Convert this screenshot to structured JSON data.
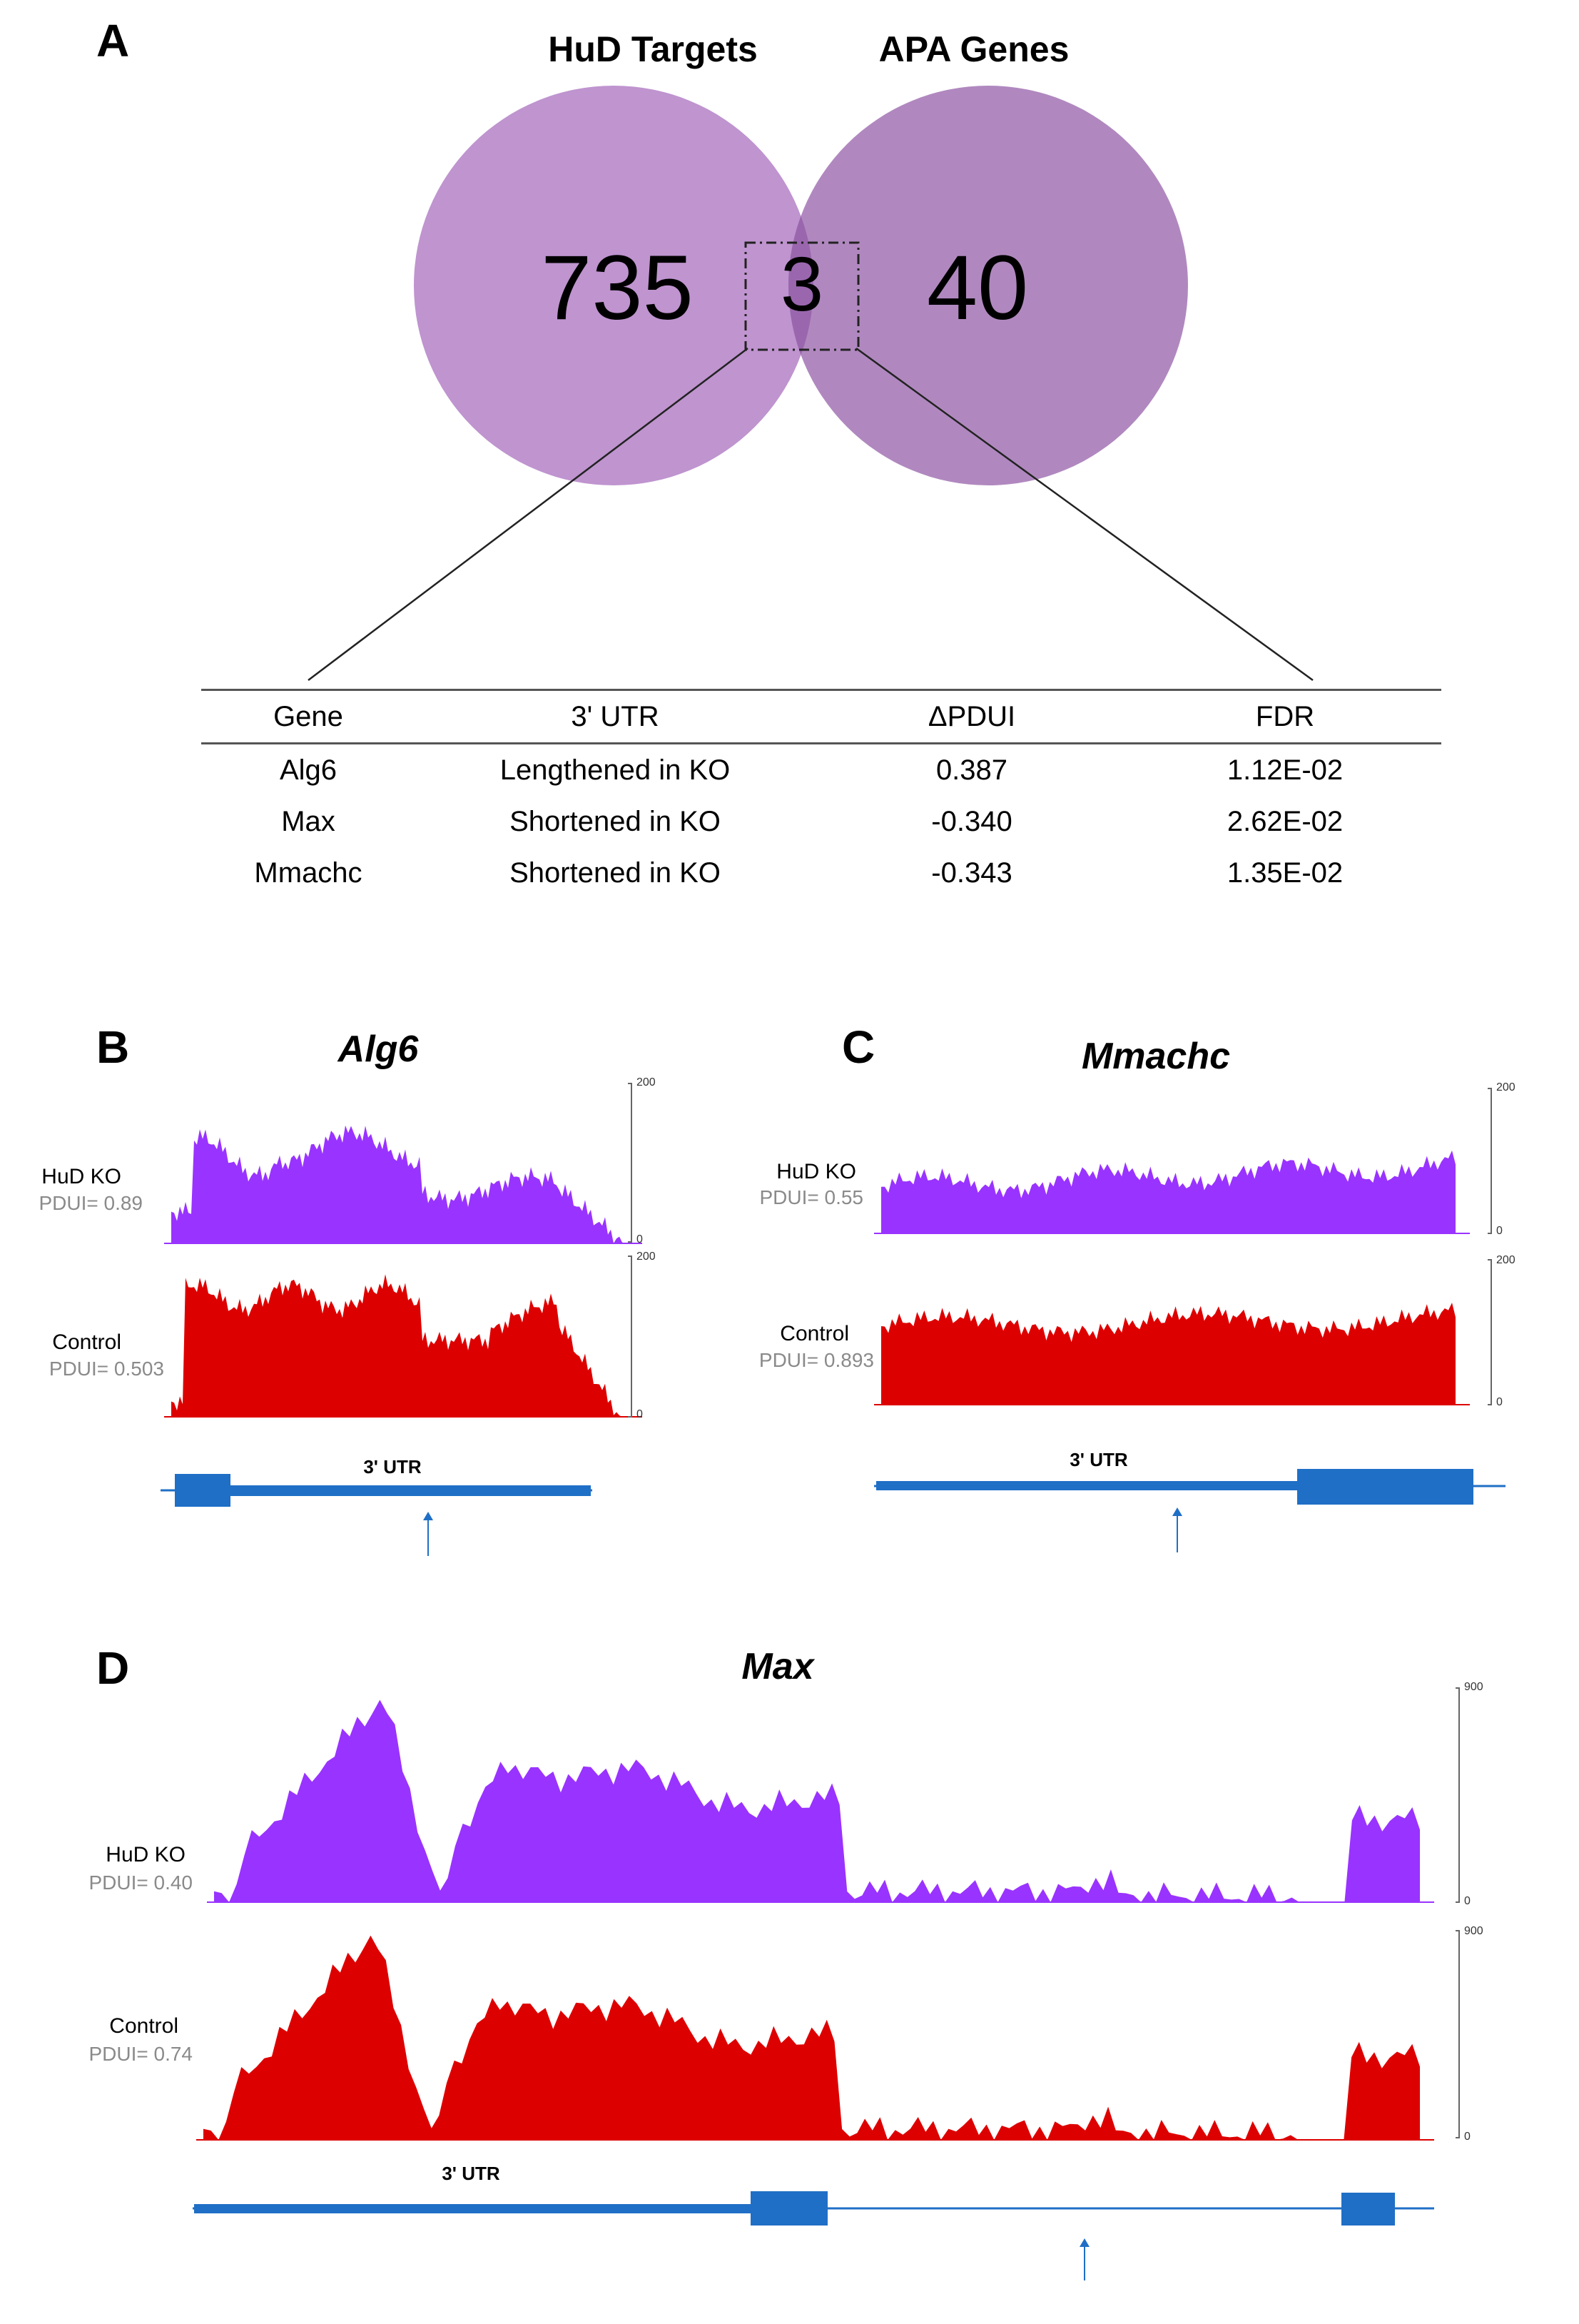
{
  "panel_a": {
    "letter": "A",
    "venn": {
      "left_label": "HuD Targets",
      "right_label": "APA Genes",
      "left_only": "735",
      "overlap": "3",
      "right_only": "40",
      "left_color": "#bf94cf",
      "right_color": "#b088bf",
      "overlap_color": "#9a67ae"
    },
    "table": {
      "headers": [
        "Gene",
        "3' UTR",
        "ΔPDUI",
        "FDR"
      ],
      "rows": [
        [
          "Alg6",
          "Lengthened in KO",
          "0.387",
          "1.12E-02"
        ],
        [
          "Max",
          "Shortened in KO",
          "-0.340",
          "2.62E-02"
        ],
        [
          "Mmachc",
          "Shortened in KO",
          "-0.343",
          "1.35E-02"
        ]
      ]
    }
  },
  "panel_b": {
    "letter": "B",
    "gene": "Alg6",
    "tracks": [
      {
        "name": "HuD KO",
        "pdui": "PDUI= 0.89",
        "scale_max": "200",
        "scale_min": "0"
      },
      {
        "name": "Control",
        "pdui": "PDUI= 0.503",
        "scale_max": "200",
        "scale_min": "0"
      }
    ],
    "utr_label": "3' UTR"
  },
  "panel_c": {
    "letter": "C",
    "gene": "Mmachc",
    "tracks": [
      {
        "name": "HuD KO",
        "pdui": "PDUI= 0.55",
        "scale_max": "200",
        "scale_min": "0"
      },
      {
        "name": "Control",
        "pdui": "PDUI= 0.893",
        "scale_max": "200",
        "scale_min": "0"
      }
    ],
    "utr_label": "3' UTR"
  },
  "panel_d": {
    "letter": "D",
    "gene": "Max",
    "tracks": [
      {
        "name": "HuD KO",
        "pdui": "PDUI= 0.40",
        "scale_max": "900",
        "scale_min": "0"
      },
      {
        "name": "Control",
        "pdui": "PDUI= 0.74",
        "scale_max": "900",
        "scale_min": "0"
      }
    ],
    "utr_label": "3' UTR"
  },
  "colors": {
    "ko_track": "#9933ff",
    "control_track": "#dd0000",
    "gene_model": "#1f6fc6"
  }
}
